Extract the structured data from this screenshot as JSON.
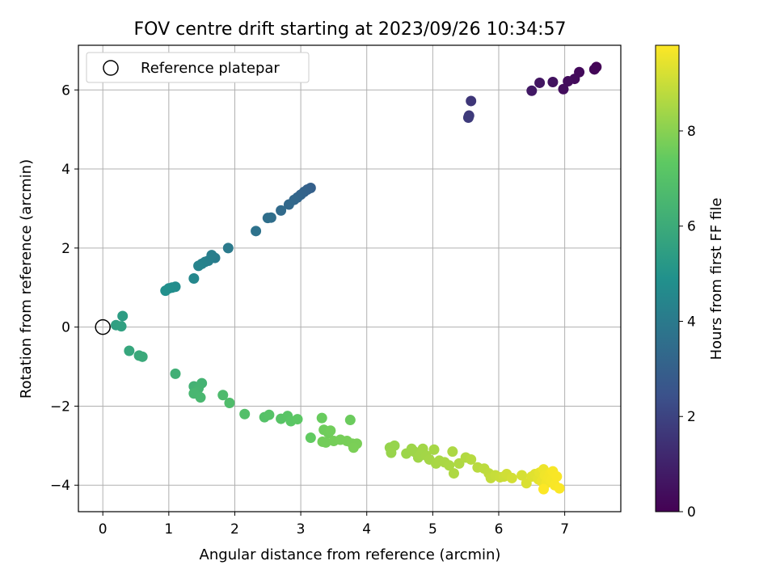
{
  "chart_data": {
    "type": "scatter",
    "title": "FOV centre drift starting at 2023/09/26 10:34:57",
    "xlabel": "Angular distance from reference (arcmin)",
    "ylabel": "Rotation from reference (arcmin)",
    "xlim": [
      -0.37,
      7.85
    ],
    "ylim": [
      -4.67,
      7.13
    ],
    "xticks": [
      0,
      1,
      2,
      3,
      4,
      5,
      6,
      7
    ],
    "yticks": [
      -4,
      -2,
      0,
      2,
      4,
      6
    ],
    "grid": true,
    "legend": {
      "placement": "top-left",
      "entries": [
        "Reference platepar"
      ]
    },
    "reference_point": {
      "x": 0,
      "y": 0
    },
    "colorbar": {
      "label": "Hours from first FF file",
      "range": [
        0,
        9.8
      ],
      "ticks": [
        0,
        2,
        4,
        6,
        8
      ],
      "colormap": "viridis"
    },
    "points": [
      {
        "x": 7.48,
        "y": 6.58,
        "c": 0.1
      },
      {
        "x": 7.45,
        "y": 6.52,
        "c": 0.15
      },
      {
        "x": 7.22,
        "y": 6.45,
        "c": 0.25
      },
      {
        "x": 7.15,
        "y": 6.28,
        "c": 0.3
      },
      {
        "x": 7.05,
        "y": 6.22,
        "c": 0.35
      },
      {
        "x": 6.98,
        "y": 6.02,
        "c": 0.4
      },
      {
        "x": 6.82,
        "y": 6.2,
        "c": 0.5
      },
      {
        "x": 6.62,
        "y": 6.18,
        "c": 0.6
      },
      {
        "x": 6.5,
        "y": 5.98,
        "c": 0.7
      },
      {
        "x": 5.58,
        "y": 5.72,
        "c": 1.6
      },
      {
        "x": 5.55,
        "y": 5.35,
        "c": 1.7
      },
      {
        "x": 5.54,
        "y": 5.3,
        "c": 1.75
      },
      {
        "x": 3.15,
        "y": 3.52,
        "c": 3.0
      },
      {
        "x": 3.1,
        "y": 3.48,
        "c": 3.05
      },
      {
        "x": 3.05,
        "y": 3.42,
        "c": 3.1
      },
      {
        "x": 3.0,
        "y": 3.35,
        "c": 3.15
      },
      {
        "x": 2.95,
        "y": 3.28,
        "c": 3.2
      },
      {
        "x": 2.9,
        "y": 3.22,
        "c": 3.25
      },
      {
        "x": 2.82,
        "y": 3.1,
        "c": 3.3
      },
      {
        "x": 2.7,
        "y": 2.95,
        "c": 3.4
      },
      {
        "x": 2.55,
        "y": 2.77,
        "c": 3.5
      },
      {
        "x": 2.5,
        "y": 2.76,
        "c": 3.55
      },
      {
        "x": 2.32,
        "y": 2.43,
        "c": 3.7
      },
      {
        "x": 1.9,
        "y": 2.0,
        "c": 4.0
      },
      {
        "x": 1.7,
        "y": 1.75,
        "c": 4.1
      },
      {
        "x": 1.65,
        "y": 1.82,
        "c": 4.15
      },
      {
        "x": 1.6,
        "y": 1.68,
        "c": 4.2
      },
      {
        "x": 1.55,
        "y": 1.65,
        "c": 4.25
      },
      {
        "x": 1.5,
        "y": 1.6,
        "c": 4.3
      },
      {
        "x": 1.45,
        "y": 1.55,
        "c": 4.35
      },
      {
        "x": 1.38,
        "y": 1.23,
        "c": 4.5
      },
      {
        "x": 1.1,
        "y": 1.02,
        "c": 4.7
      },
      {
        "x": 1.05,
        "y": 1.0,
        "c": 4.75
      },
      {
        "x": 1.0,
        "y": 0.98,
        "c": 4.8
      },
      {
        "x": 0.95,
        "y": 0.92,
        "c": 4.85
      },
      {
        "x": 0.3,
        "y": 0.28,
        "c": 5.4
      },
      {
        "x": 0.2,
        "y": 0.05,
        "c": 5.5
      },
      {
        "x": 0.28,
        "y": 0.02,
        "c": 5.55
      },
      {
        "x": 0.4,
        "y": -0.6,
        "c": 5.8
      },
      {
        "x": 0.55,
        "y": -0.72,
        "c": 5.9
      },
      {
        "x": 0.6,
        "y": -0.75,
        "c": 5.95
      },
      {
        "x": 1.1,
        "y": -1.18,
        "c": 6.2
      },
      {
        "x": 1.38,
        "y": -1.5,
        "c": 6.3
      },
      {
        "x": 1.5,
        "y": -1.42,
        "c": 6.35
      },
      {
        "x": 1.45,
        "y": -1.55,
        "c": 6.4
      },
      {
        "x": 1.42,
        "y": -1.65,
        "c": 6.45
      },
      {
        "x": 1.38,
        "y": -1.68,
        "c": 6.5
      },
      {
        "x": 1.48,
        "y": -1.78,
        "c": 6.55
      },
      {
        "x": 1.82,
        "y": -1.72,
        "c": 6.7
      },
      {
        "x": 1.92,
        "y": -1.92,
        "c": 6.8
      },
      {
        "x": 2.15,
        "y": -2.2,
        "c": 6.9
      },
      {
        "x": 2.45,
        "y": -2.28,
        "c": 7.0
      },
      {
        "x": 2.52,
        "y": -2.22,
        "c": 7.05
      },
      {
        "x": 2.7,
        "y": -2.32,
        "c": 7.1
      },
      {
        "x": 2.8,
        "y": -2.25,
        "c": 7.15
      },
      {
        "x": 2.85,
        "y": -2.38,
        "c": 7.2
      },
      {
        "x": 2.95,
        "y": -2.33,
        "c": 7.25
      },
      {
        "x": 3.15,
        "y": -2.8,
        "c": 7.4
      },
      {
        "x": 3.32,
        "y": -2.3,
        "c": 7.5
      },
      {
        "x": 3.75,
        "y": -2.35,
        "c": 7.55
      },
      {
        "x": 3.35,
        "y": -2.6,
        "c": 7.6
      },
      {
        "x": 3.42,
        "y": -2.68,
        "c": 7.62
      },
      {
        "x": 3.45,
        "y": -2.62,
        "c": 7.64
      },
      {
        "x": 3.33,
        "y": -2.9,
        "c": 7.66
      },
      {
        "x": 3.38,
        "y": -2.92,
        "c": 7.68
      },
      {
        "x": 3.5,
        "y": -2.88,
        "c": 7.7
      },
      {
        "x": 3.6,
        "y": -2.85,
        "c": 7.72
      },
      {
        "x": 3.7,
        "y": -2.88,
        "c": 7.74
      },
      {
        "x": 3.78,
        "y": -2.95,
        "c": 7.76
      },
      {
        "x": 3.85,
        "y": -2.95,
        "c": 7.78
      },
      {
        "x": 3.8,
        "y": -3.05,
        "c": 7.8
      },
      {
        "x": 4.35,
        "y": -3.05,
        "c": 8.2
      },
      {
        "x": 4.42,
        "y": -3.0,
        "c": 8.22
      },
      {
        "x": 4.37,
        "y": -3.18,
        "c": 8.24
      },
      {
        "x": 4.6,
        "y": -3.2,
        "c": 8.3
      },
      {
        "x": 4.68,
        "y": -3.08,
        "c": 8.32
      },
      {
        "x": 4.72,
        "y": -3.15,
        "c": 8.34
      },
      {
        "x": 4.78,
        "y": -3.3,
        "c": 8.36
      },
      {
        "x": 4.82,
        "y": -3.22,
        "c": 8.38
      },
      {
        "x": 4.85,
        "y": -3.08,
        "c": 8.4
      },
      {
        "x": 4.9,
        "y": -3.25,
        "c": 8.42
      },
      {
        "x": 4.95,
        "y": -3.35,
        "c": 8.44
      },
      {
        "x": 5.02,
        "y": -3.1,
        "c": 8.46
      },
      {
        "x": 5.05,
        "y": -3.45,
        "c": 8.48
      },
      {
        "x": 5.1,
        "y": -3.38,
        "c": 8.5
      },
      {
        "x": 5.18,
        "y": -3.42,
        "c": 8.52
      },
      {
        "x": 5.25,
        "y": -3.5,
        "c": 8.54
      },
      {
        "x": 5.3,
        "y": -3.15,
        "c": 8.56
      },
      {
        "x": 5.32,
        "y": -3.7,
        "c": 8.58
      },
      {
        "x": 5.4,
        "y": -3.45,
        "c": 8.6
      },
      {
        "x": 5.5,
        "y": -3.3,
        "c": 8.65
      },
      {
        "x": 5.58,
        "y": -3.35,
        "c": 8.7
      },
      {
        "x": 5.68,
        "y": -3.55,
        "c": 8.75
      },
      {
        "x": 5.78,
        "y": -3.58,
        "c": 8.8
      },
      {
        "x": 5.85,
        "y": -3.7,
        "c": 8.85
      },
      {
        "x": 5.88,
        "y": -3.82,
        "c": 8.9
      },
      {
        "x": 5.95,
        "y": -3.75,
        "c": 8.95
      },
      {
        "x": 6.02,
        "y": -3.8,
        "c": 9.0
      },
      {
        "x": 6.08,
        "y": -3.78,
        "c": 9.05
      },
      {
        "x": 6.12,
        "y": -3.72,
        "c": 9.1
      },
      {
        "x": 6.2,
        "y": -3.82,
        "c": 9.15
      },
      {
        "x": 6.35,
        "y": -3.75,
        "c": 9.2
      },
      {
        "x": 6.42,
        "y": -3.95,
        "c": 9.25
      },
      {
        "x": 6.5,
        "y": -3.78,
        "c": 9.3
      },
      {
        "x": 6.55,
        "y": -3.72,
        "c": 9.35
      },
      {
        "x": 6.6,
        "y": -3.85,
        "c": 9.4
      },
      {
        "x": 6.62,
        "y": -3.68,
        "c": 9.45
      },
      {
        "x": 6.65,
        "y": -3.9,
        "c": 9.5
      },
      {
        "x": 6.68,
        "y": -3.6,
        "c": 9.55
      },
      {
        "x": 6.7,
        "y": -3.75,
        "c": 9.6
      },
      {
        "x": 6.72,
        "y": -3.95,
        "c": 9.62
      },
      {
        "x": 6.75,
        "y": -3.82,
        "c": 9.64
      },
      {
        "x": 6.78,
        "y": -3.7,
        "c": 9.66
      },
      {
        "x": 6.8,
        "y": -3.88,
        "c": 9.68
      },
      {
        "x": 6.82,
        "y": -3.65,
        "c": 9.7
      },
      {
        "x": 6.85,
        "y": -4.0,
        "c": 9.72
      },
      {
        "x": 6.88,
        "y": -3.78,
        "c": 9.74
      },
      {
        "x": 6.92,
        "y": -4.08,
        "c": 9.76
      },
      {
        "x": 6.68,
        "y": -4.1,
        "c": 9.78
      }
    ]
  }
}
